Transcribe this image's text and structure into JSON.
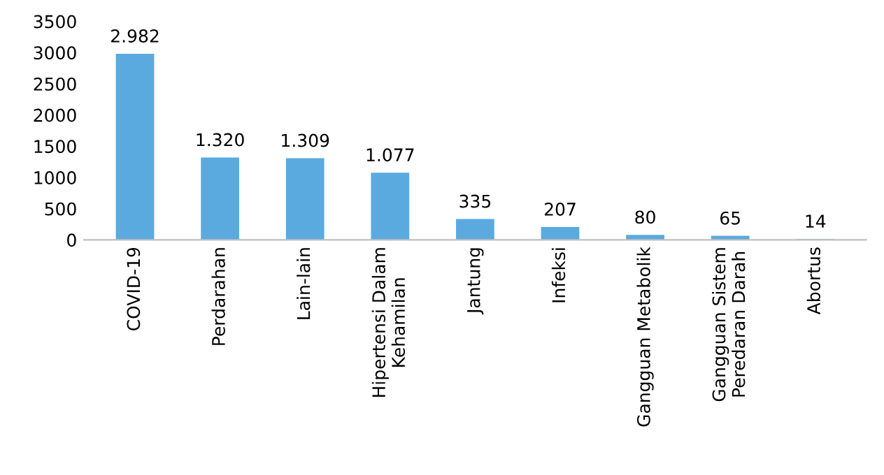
{
  "chart_data": {
    "type": "bar",
    "categories": [
      "COVID-19",
      "Perdarahan",
      "Lain-lain",
      "Hipertensi Dalam\nKehamilan",
      "Jantung",
      "Infeksi",
      "Gangguan Metabolik",
      "Gangguan Sistem\nPeredaran Darah",
      "Abortus"
    ],
    "values": [
      2982,
      1320,
      1309,
      1077,
      335,
      207,
      80,
      65,
      14
    ],
    "value_labels": [
      "2.982",
      "1.320",
      "1.309",
      "1.077",
      "335",
      "207",
      "80",
      "65",
      "14"
    ],
    "color": "#5aaae0",
    "ylim": [
      0,
      3500
    ],
    "yticks": [
      0,
      500,
      1000,
      1500,
      2000,
      2500,
      3000,
      3500
    ],
    "grid": false,
    "legend": false
  }
}
